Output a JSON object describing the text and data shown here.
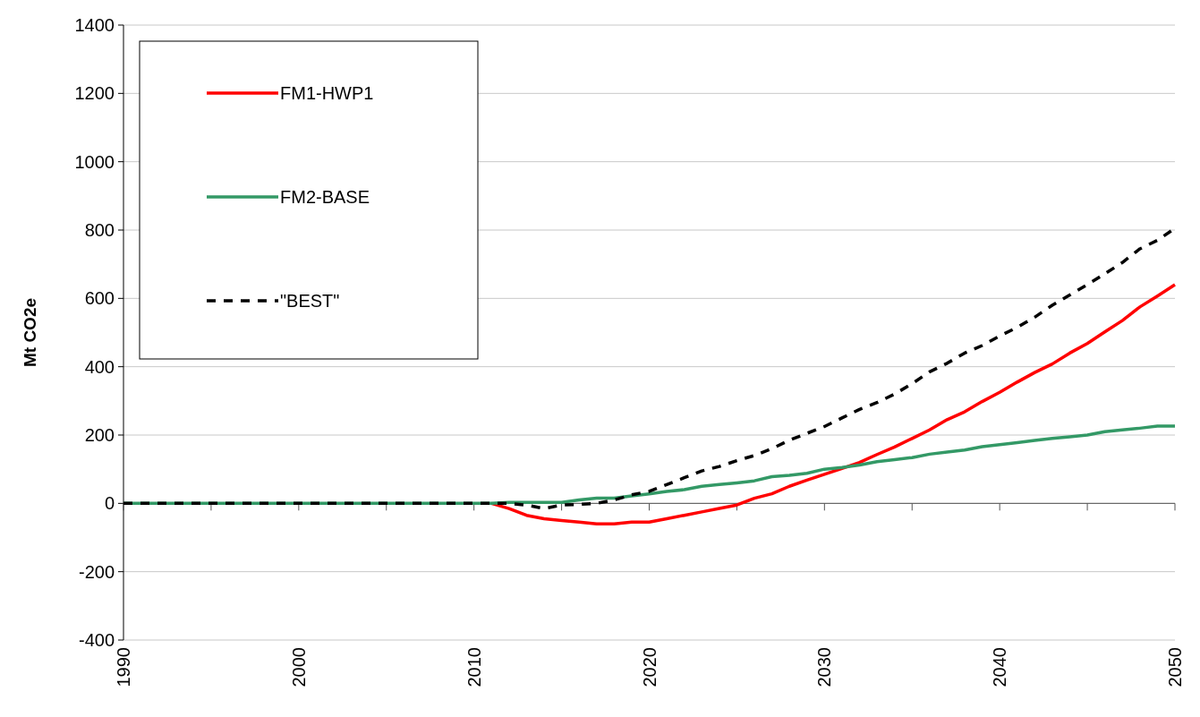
{
  "chart_data": {
    "type": "line",
    "ylabel": "Mt CO2e",
    "x": [
      1990,
      1991,
      1992,
      1993,
      1994,
      1995,
      1996,
      1997,
      1998,
      1999,
      2000,
      2001,
      2002,
      2003,
      2004,
      2005,
      2006,
      2007,
      2008,
      2009,
      2010,
      2011,
      2012,
      2013,
      2014,
      2015,
      2016,
      2017,
      2018,
      2019,
      2020,
      2021,
      2022,
      2023,
      2024,
      2025,
      2026,
      2027,
      2028,
      2029,
      2030,
      2031,
      2032,
      2033,
      2034,
      2035,
      2036,
      2037,
      2038,
      2039,
      2040,
      2041,
      2042,
      2043,
      2044,
      2045,
      2046,
      2047,
      2048,
      2049,
      2050
    ],
    "series": [
      {
        "name": "FM1-HWP1",
        "color": "#ff0000",
        "line_style": "solid",
        "values": [
          null,
          null,
          null,
          null,
          null,
          null,
          null,
          null,
          null,
          null,
          null,
          null,
          null,
          null,
          null,
          null,
          null,
          null,
          null,
          null,
          null,
          0,
          -15,
          -35,
          -45,
          -50,
          -55,
          -60,
          -60,
          -55,
          -55,
          -45,
          -35,
          -25,
          -15,
          -5,
          15,
          28,
          50,
          68,
          85,
          102,
          120,
          143,
          165,
          190,
          215,
          245,
          268,
          298,
          325,
          355,
          383,
          408,
          440,
          468,
          502,
          535,
          575,
          607,
          640
        ]
      },
      {
        "name": "FM2-BASE",
        "color": "#339966",
        "line_style": "solid",
        "values": [
          0,
          0,
          0,
          0,
          0,
          0,
          0,
          0,
          0,
          0,
          0,
          0,
          0,
          0,
          0,
          0,
          0,
          0,
          0,
          0,
          0,
          0,
          3,
          3,
          3,
          3,
          10,
          15,
          15,
          22,
          28,
          35,
          40,
          50,
          55,
          60,
          66,
          78,
          82,
          88,
          100,
          105,
          112,
          122,
          128,
          134,
          144,
          150,
          156,
          166,
          172,
          178,
          184,
          190,
          195,
          200,
          210,
          215,
          220,
          226,
          226
        ]
      },
      {
        "name": "\"BEST\"",
        "color": "#000000",
        "line_style": "dashed",
        "values": [
          0,
          0,
          0,
          0,
          0,
          0,
          0,
          0,
          0,
          0,
          0,
          0,
          0,
          0,
          0,
          0,
          0,
          0,
          0,
          0,
          0,
          0,
          0,
          -5,
          -15,
          -5,
          -3,
          0,
          10,
          25,
          35,
          55,
          75,
          95,
          108,
          125,
          140,
          160,
          185,
          205,
          225,
          250,
          275,
          295,
          320,
          350,
          385,
          410,
          440,
          462,
          490,
          515,
          545,
          580,
          610,
          640,
          672,
          705,
          745,
          770,
          805
        ]
      }
    ],
    "xlim": [
      1990,
      2050
    ],
    "xticks": [
      1990,
      {
        "value": 1995,
        "label": null
      },
      2000,
      {
        "value": 2005,
        "label": null
      },
      2010,
      {
        "value": 2015,
        "label": null
      },
      2020,
      {
        "value": 2025,
        "label": null
      },
      2030,
      {
        "value": 2035,
        "label": null
      },
      2040,
      {
        "value": 2045,
        "label": null
      },
      2050
    ],
    "ylim": [
      -400,
      1400
    ],
    "yticks": [
      -400,
      -200,
      0,
      200,
      400,
      600,
      800,
      1000,
      1200,
      1400
    ],
    "grid": "y",
    "legend": "top left"
  }
}
